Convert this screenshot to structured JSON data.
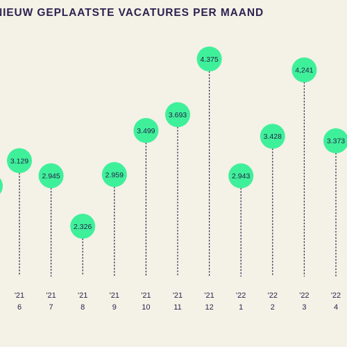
{
  "chart_data": {
    "type": "scatter",
    "title": "NIEUW GEPLAATSTE VACATURES PER MAAND",
    "categories": [
      {
        "year": "'21",
        "month": "6"
      },
      {
        "year": "'21",
        "month": "7"
      },
      {
        "year": "'21",
        "month": "8"
      },
      {
        "year": "'21",
        "month": "9"
      },
      {
        "year": "'21",
        "month": "10"
      },
      {
        "year": "'21",
        "month": "11"
      },
      {
        "year": "'21",
        "month": "12"
      },
      {
        "year": "'22",
        "month": "1"
      },
      {
        "year": "'22",
        "month": "2"
      },
      {
        "year": "'22",
        "month": "3"
      },
      {
        "year": "'22",
        "month": "4"
      }
    ],
    "values": [
      3129,
      2945,
      2326,
      2959,
      3499,
      3693,
      4375,
      2943,
      3428,
      4241,
      3373
    ],
    "value_labels": [
      "3.129",
      "2.945",
      "2.326",
      "2.959",
      "3.499",
      "3.693",
      "4.375",
      "2.943",
      "3.428",
      "4,241",
      "3.373"
    ],
    "colors": {
      "background": "#f4f1e6",
      "bubble": "#3ff09a",
      "text": "#2b2350",
      "stem": "#2b2350"
    }
  }
}
